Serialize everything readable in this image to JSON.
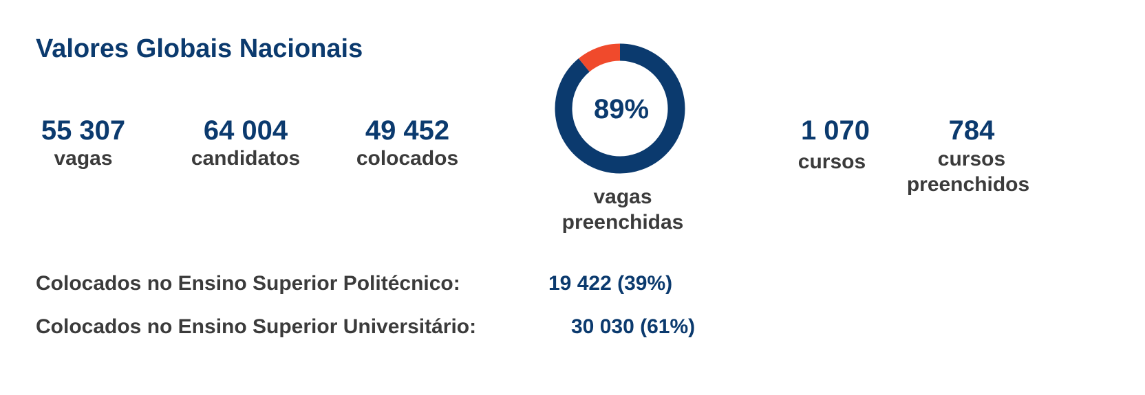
{
  "header": {
    "title": "Valores Globais Nacionais"
  },
  "stats": [
    {
      "value": "55 307",
      "label": [
        "vagas"
      ]
    },
    {
      "value": "64 004",
      "label": [
        "candidatos"
      ]
    },
    {
      "value": "49 452",
      "label": [
        "colocados"
      ]
    },
    {
      "value": "1 070",
      "label": [
        "cursos"
      ]
    },
    {
      "value": "784",
      "label": [
        "cursos",
        "preenchidos"
      ]
    }
  ],
  "donut": {
    "value": 89,
    "value_label": "89%",
    "caption": [
      "vagas",
      "preenchidas"
    ],
    "color": "#0b3a6e",
    "rest_color": "#f04a2c"
  },
  "breakdown": [
    {
      "label": "Colocados no Ensino Superior Politécnico:",
      "value": "19 422 (39%)"
    },
    {
      "label": "Colocados no Ensino Superior Universitário:",
      "value": "30 030 (61%)"
    }
  ]
}
